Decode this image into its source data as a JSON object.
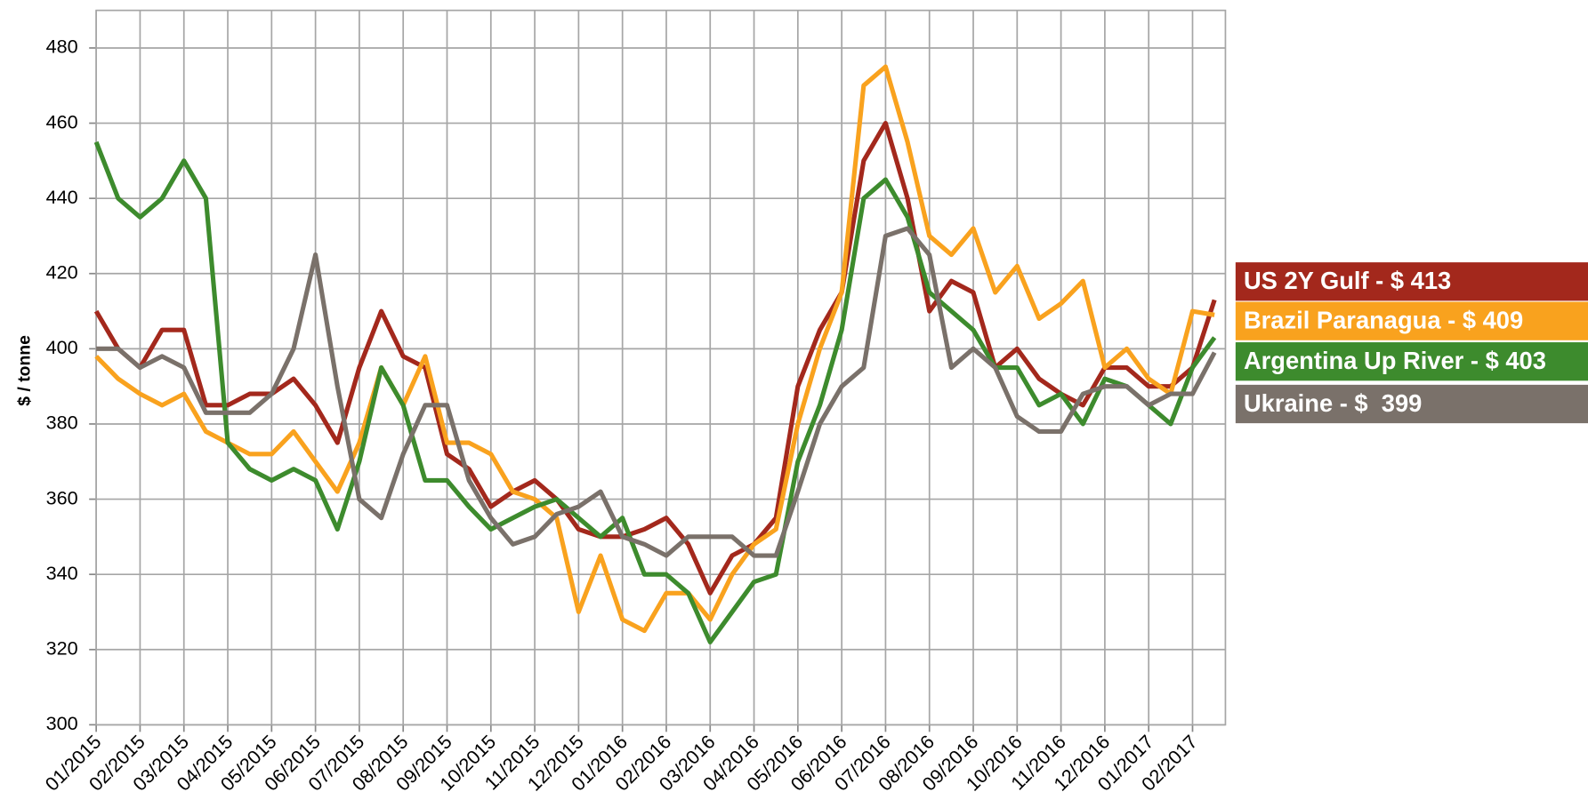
{
  "chart_data": {
    "type": "line",
    "y_label": "$ / tonne",
    "categories": [
      "01/2015",
      null,
      "02/2015",
      null,
      "03/2015",
      null,
      "04/2015",
      null,
      "05/2015",
      null,
      "06/2015",
      null,
      "07/2015",
      null,
      "08/2015",
      null,
      "09/2015",
      null,
      "10/2015",
      null,
      "11/2015",
      null,
      "12/2015",
      null,
      "01/2016",
      null,
      "02/2016",
      null,
      "03/2016",
      null,
      "04/2016",
      null,
      "05/2016",
      null,
      "06/2016",
      null,
      "07/2016",
      null,
      "08/2016",
      null,
      "09/2016",
      null,
      "10/2016",
      null,
      "11/2016",
      null,
      "12/2016",
      null,
      "01/2017",
      null,
      "02/2017",
      null
    ],
    "series": [
      {
        "name": "US 2Y Gulf - $ 413",
        "color": "#a3281c",
        "values": [
          410,
          400,
          395,
          405,
          405,
          385,
          385,
          388,
          388,
          392,
          385,
          375,
          395,
          410,
          398,
          395,
          372,
          368,
          358,
          362,
          365,
          360,
          352,
          350,
          350,
          352,
          355,
          348,
          335,
          345,
          348,
          355,
          390,
          405,
          415,
          450,
          460,
          440,
          410,
          418,
          415,
          395,
          400,
          392,
          388,
          385,
          395,
          395,
          390,
          390,
          395,
          413
        ]
      },
      {
        "name": "Brazil Paranagua - $ 409",
        "color": "#f9a21e",
        "values": [
          398,
          392,
          388,
          385,
          388,
          378,
          375,
          372,
          372,
          378,
          370,
          362,
          375,
          395,
          385,
          398,
          375,
          375,
          372,
          362,
          360,
          355,
          330,
          345,
          328,
          325,
          335,
          335,
          328,
          340,
          348,
          352,
          380,
          400,
          415,
          470,
          475,
          455,
          430,
          425,
          432,
          415,
          422,
          408,
          412,
          418,
          395,
          400,
          392,
          388,
          410,
          409
        ]
      },
      {
        "name": "Argentina Up River - $ 403",
        "color": "#3d8b2d",
        "values": [
          455,
          440,
          435,
          440,
          450,
          440,
          375,
          368,
          365,
          368,
          365,
          352,
          370,
          395,
          385,
          365,
          365,
          358,
          352,
          355,
          358,
          360,
          355,
          350,
          355,
          340,
          340,
          335,
          322,
          330,
          338,
          340,
          370,
          385,
          405,
          440,
          445,
          435,
          415,
          410,
          405,
          395,
          395,
          385,
          388,
          380,
          392,
          390,
          385,
          380,
          395,
          403
        ]
      },
      {
        "name": "Ukraine - $  399",
        "color": "#7a716a",
        "values": [
          400,
          400,
          395,
          398,
          395,
          383,
          383,
          383,
          388,
          400,
          425,
          390,
          360,
          355,
          372,
          385,
          385,
          365,
          355,
          348,
          350,
          356,
          358,
          362,
          350,
          348,
          345,
          350,
          350,
          350,
          345,
          345,
          362,
          380,
          390,
          395,
          430,
          432,
          425,
          395,
          400,
          395,
          382,
          378,
          378,
          388,
          390,
          390,
          385,
          388,
          388,
          399
        ]
      }
    ],
    "ylim": [
      300,
      490
    ],
    "yticks": [
      300,
      320,
      340,
      360,
      380,
      400,
      420,
      440,
      460,
      480
    ],
    "grid": true
  }
}
